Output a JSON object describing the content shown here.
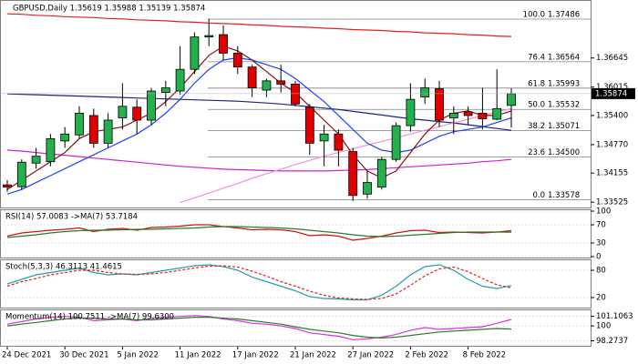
{
  "chart_data": {
    "type": "candlestick",
    "title": "GBPUSD,Daily  1.35619 1.35988 1.35139 1.35874",
    "categories": [
      "24 Dec 2021",
      null,
      null,
      null,
      "30 Dec 2021",
      null,
      null,
      null,
      "5 Jan 2022",
      null,
      null,
      null,
      "11 Jan 2022",
      null,
      null,
      null,
      "17 Jan 2022",
      null,
      null,
      null,
      "21 Jan 2022",
      null,
      null,
      null,
      "27 Jan 2022",
      null,
      null,
      null,
      "2 Feb 2022",
      null,
      null,
      null,
      "8 Feb 2022",
      null,
      null,
      null
    ],
    "open": [
      1.339,
      1.3386,
      1.3437,
      1.344,
      1.3485,
      1.3498,
      1.354,
      1.348,
      1.3535,
      1.3558,
      1.353,
      1.359,
      1.3593,
      1.364,
      1.371,
      1.3715,
      1.3675,
      1.3645,
      1.3595,
      1.3615,
      1.3608,
      1.3558,
      1.3485,
      1.35,
      1.3462,
      1.337,
      1.3385,
      1.3445,
      1.3518,
      1.358,
      1.3598,
      1.3535,
      1.3548,
      1.3545,
      1.3532,
      1.35619
    ],
    "high": [
      1.34,
      1.3445,
      1.347,
      1.35,
      1.3515,
      1.356,
      1.3555,
      1.3545,
      1.361,
      1.3575,
      1.36,
      1.3615,
      1.369,
      1.372,
      1.3749,
      1.3735,
      1.369,
      1.365,
      1.362,
      1.365,
      1.3615,
      1.3565,
      1.352,
      1.351,
      1.347,
      1.342,
      1.345,
      1.3525,
      1.361,
      1.362,
      1.3615,
      1.356,
      1.356,
      1.36,
      1.364,
      1.35988
    ],
    "low": [
      1.3375,
      1.338,
      1.3425,
      1.343,
      1.347,
      1.349,
      1.347,
      1.347,
      1.351,
      1.35,
      1.352,
      1.356,
      1.3585,
      1.363,
      1.369,
      1.366,
      1.363,
      1.358,
      1.358,
      1.359,
      1.356,
      1.3455,
      1.343,
      1.343,
      1.3355,
      1.336,
      1.338,
      1.344,
      1.3505,
      1.3565,
      1.3515,
      1.35,
      1.352,
      1.351,
      1.353,
      1.35139
    ],
    "close": [
      1.3385,
      1.3439,
      1.3452,
      1.349,
      1.35,
      1.3545,
      1.348,
      1.353,
      1.356,
      1.353,
      1.3593,
      1.36,
      1.364,
      1.371,
      1.3713,
      1.3675,
      1.3645,
      1.36,
      1.3615,
      1.3608,
      1.3565,
      1.348,
      1.35,
      1.3465,
      1.3367,
      1.3395,
      1.3445,
      1.3518,
      1.3575,
      1.36,
      1.353,
      1.3545,
      1.354,
      1.3533,
      1.3555,
      1.35874
    ],
    "up_color": "#22b14c",
    "down_color": "#e00000",
    "ylim": [
      1.3341,
      1.379
    ],
    "yticks": [
      1.33525,
      1.34155,
      {
        "value": 1.3477,
        "label": "1.34770"
      },
      {
        "value": 1.354,
        "label": "1.35400"
      },
      1.36015,
      1.36645
    ],
    "current_price": 1.35874,
    "overlays": [
      {
        "color": "#e02020",
        "values": [
          1.376,
          1.3759,
          1.3757,
          1.3756,
          1.3754,
          1.3753,
          1.3752,
          1.375,
          1.3749,
          1.3747,
          1.3746,
          1.3745,
          1.3743,
          1.3742,
          1.374,
          1.3739,
          1.3738,
          1.3736,
          1.3735,
          1.3733,
          1.3732,
          1.3731,
          1.3729,
          1.3728,
          1.3726,
          1.3725,
          1.3724,
          1.3722,
          1.3721,
          1.3719,
          1.3718,
          1.3717,
          1.3715,
          1.3714,
          1.3712,
          1.3711
        ]
      },
      {
        "color": "#1a237e",
        "values": [
          1.3587,
          1.3586,
          1.3585,
          1.3584,
          1.3583,
          1.3582,
          1.3581,
          1.358,
          1.3579,
          1.3578,
          1.3577,
          1.3576,
          1.3575,
          1.3574,
          1.3573,
          1.3572,
          1.3571,
          1.3569,
          1.3567,
          1.3565,
          1.3562,
          1.3559,
          1.3556,
          1.3553,
          1.3549,
          1.3545,
          1.3541,
          1.3537,
          1.3533,
          1.353,
          1.3527,
          1.3524,
          1.352,
          1.3516,
          1.3512,
          1.3508
        ]
      },
      {
        "color": "#d020d0",
        "values": [
          1.3465,
          1.3463,
          1.346,
          1.3457,
          1.3454,
          1.3451,
          1.3448,
          1.3445,
          1.3442,
          1.3439,
          1.3436,
          1.3433,
          1.343,
          1.3428,
          1.3426,
          1.3424,
          1.3423,
          1.3422,
          1.3421,
          1.342,
          1.342,
          1.342,
          1.342,
          1.3421,
          1.3422,
          1.3423,
          1.3425,
          1.3427,
          1.3429,
          1.3431,
          1.3433,
          1.3435,
          1.3437,
          1.344,
          1.3442,
          1.3445
        ]
      },
      {
        "color": "#f090e0",
        "values": [
          null,
          null,
          null,
          null,
          null,
          null,
          null,
          null,
          null,
          null,
          null,
          null,
          1.3352,
          1.3362,
          1.3372,
          1.3383,
          1.3393,
          1.3404,
          1.3414,
          1.3424,
          1.3434,
          1.3443,
          1.3452,
          1.346,
          1.3468,
          1.3476,
          1.3484,
          1.3492,
          1.35,
          1.3508,
          1.3516,
          1.3524,
          1.3532,
          1.354,
          1.3548,
          1.3555
        ]
      },
      {
        "color": "#2040ff",
        "values": [
          1.337,
          1.338,
          1.3395,
          1.341,
          1.3425,
          1.344,
          1.3455,
          1.347,
          1.3485,
          1.35,
          1.352,
          1.3545,
          1.3575,
          1.361,
          1.364,
          1.366,
          1.3665,
          1.366,
          1.365,
          1.364,
          1.362,
          1.3595,
          1.357,
          1.354,
          1.351,
          1.348,
          1.3465,
          1.346,
          1.3465,
          1.348,
          1.3495,
          1.3505,
          1.351,
          1.3515,
          1.3525,
          1.3535
        ]
      },
      {
        "color": "#8b1010",
        "values": [
          1.338,
          1.34,
          1.342,
          1.344,
          1.346,
          1.349,
          1.3505,
          1.351,
          1.3515,
          1.353,
          1.3545,
          1.357,
          1.36,
          1.3635,
          1.367,
          1.369,
          1.368,
          1.366,
          1.3635,
          1.361,
          1.359,
          1.356,
          1.353,
          1.35,
          1.3455,
          1.342,
          1.3405,
          1.342,
          1.346,
          1.35,
          1.353,
          1.3545,
          1.355,
          1.354,
          1.354,
          1.355
        ]
      }
    ],
    "fibonacci": [
      {
        "level": "100.0",
        "price": 1.37486
      },
      {
        "level": "76.4",
        "price": 1.36564
      },
      {
        "level": "61.8",
        "price": 1.35993
      },
      {
        "level": "50.0",
        "price": 1.35532
      },
      {
        "level": "38.2",
        "price": 1.35071
      },
      {
        "level": "23.6",
        "price": {
          "value": 1.345,
          "label": "1.34500"
        }
      },
      {
        "level": "0.0",
        "price": 1.33578
      }
    ],
    "indicators": [
      {
        "type": "line",
        "title": "RSI(14) 57.0083 ->MA(7) 53.7184",
        "ylim": [
          0,
          100
        ],
        "yticks": [
          100,
          70,
          30,
          0
        ],
        "series": [
          {
            "color": "#d01010",
            "values": [
              45,
              52,
              55,
              58,
              60,
              63,
              55,
              60,
              62,
              58,
              64,
              65,
              67,
              70,
              70,
              66,
              63,
              59,
              60,
              59,
              55,
              46,
              48,
              45,
              36,
              40,
              45,
              52,
              57,
              58,
              53,
              54,
              53,
              52,
              54,
              57.0083
            ]
          },
          {
            "color": "#2a7a2a",
            "values": [
              42,
              45,
              48,
              52,
              55,
              57,
              58,
              58,
              59,
              60,
              60,
              61,
              62,
              63,
              65,
              66,
              66,
              65,
              64,
              63,
              61,
              58,
              55,
              52,
              48,
              45,
              44,
              45,
              47,
              49,
              51,
              53,
              54,
              54,
              54,
              53.7184
            ]
          }
        ]
      },
      {
        "type": "line",
        "title": "Stoch(5,3,3) 46.3113 41.4615",
        "ylim": [
          0,
          100
        ],
        "yticks": [
          80,
          20
        ],
        "series": [
          {
            "color": "#20a0a8",
            "values": [
              50,
              60,
              70,
              75,
              80,
              85,
              75,
              70,
              72,
              70,
              75,
              80,
              85,
              90,
              92,
              88,
              80,
              65,
              55,
              45,
              35,
              22,
              18,
              17,
              15,
              15,
              25,
              45,
              70,
              88,
              92,
              80,
              60,
              45,
              40,
              46.3113
            ]
          },
          {
            "color": "#e02020",
            "dash": true,
            "values": [
              45,
              55,
              62,
              70,
              75,
              80,
              80,
              75,
              72,
              71,
              72,
              75,
              80,
              85,
              89,
              90,
              87,
              78,
              67,
              55,
              45,
              34,
              25,
              19,
              17,
              16,
              18,
              28,
              47,
              68,
              83,
              87,
              77,
              62,
              48,
              41.4615
            ]
          }
        ]
      },
      {
        "type": "line",
        "title": "Momentum(14) 100.7511 ->MA(7) 99.6300",
        "ylim": [
          97.8,
          101.7
        ],
        "yticks": [
          101.1063,
          100,
          98.2737
        ],
        "series": [
          {
            "color": "#e030e0",
            "values": [
              100.2,
              100.5,
              100.8,
              101.0,
              101.1,
              101.0,
              100.6,
              100.7,
              100.8,
              100.6,
              100.9,
              101.0,
              101.1,
              101.2,
              101.1,
              100.8,
              100.6,
              100.3,
              100.2,
              100.0,
              99.7,
              99.2,
              99.0,
              98.8,
              98.4,
              98.5,
              98.7,
              99.0,
              99.5,
              99.8,
              99.6,
              99.7,
              99.8,
              99.9,
              100.3,
              100.7511
            ]
          },
          {
            "color": "#2a7a2a",
            "values": [
              100.0,
              100.2,
              100.4,
              100.6,
              100.8,
              100.9,
              100.9,
              100.8,
              100.8,
              100.7,
              100.7,
              100.8,
              100.9,
              101.0,
              101.0,
              100.9,
              100.8,
              100.6,
              100.4,
              100.2,
              99.9,
              99.6,
              99.4,
              99.2,
              98.9,
              98.7,
              98.6,
              98.7,
              98.9,
              99.1,
              99.3,
              99.4,
              99.5,
              99.6,
              99.7,
              99.63
            ]
          }
        ]
      }
    ]
  }
}
